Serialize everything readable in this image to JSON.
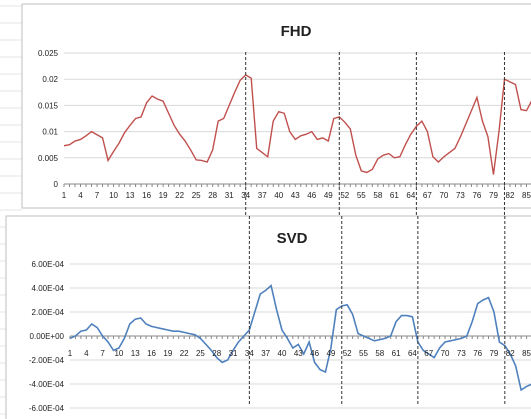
{
  "chart_data": [
    {
      "type": "line",
      "title": "FHD",
      "xlabel": "",
      "ylabel": "",
      "ylim": [
        0,
        0.025
      ],
      "y_ticks": [
        "0",
        "0.005",
        "0.01",
        "0.015",
        "0.02",
        "0.025"
      ],
      "y_tick_values": [
        0,
        0.005,
        0.01,
        0.015,
        0.02,
        0.025
      ],
      "x": [
        1,
        2,
        3,
        4,
        5,
        6,
        7,
        8,
        9,
        10,
        11,
        12,
        13,
        14,
        15,
        16,
        17,
        18,
        19,
        20,
        21,
        22,
        23,
        24,
        25,
        26,
        27,
        28,
        29,
        30,
        31,
        32,
        33,
        34,
        35,
        36,
        37,
        38,
        39,
        40,
        41,
        42,
        43,
        44,
        45,
        46,
        47,
        48,
        49,
        50,
        51,
        52,
        53,
        54,
        55,
        56,
        57,
        58,
        59,
        60,
        61,
        62,
        63,
        64,
        65,
        66,
        67,
        68,
        69,
        70,
        71,
        72,
        73,
        74,
        75,
        76,
        77,
        78,
        79,
        80,
        81,
        82,
        83,
        84,
        85,
        86
      ],
      "x_tick_labels": [
        "1",
        "4",
        "7",
        "10",
        "13",
        "16",
        "19",
        "22",
        "25",
        "28",
        "31",
        "34",
        "37",
        "40",
        "43",
        "46",
        "49",
        "52",
        "55",
        "58",
        "61",
        "64",
        "67",
        "70",
        "73",
        "76",
        "79",
        "82",
        "85"
      ],
      "grid": true,
      "series": [
        {
          "color": "#c0504d",
          "values": [
            0.0073,
            0.0075,
            0.0082,
            0.0085,
            0.0092,
            0.01,
            0.0094,
            0.0088,
            0.0045,
            0.0062,
            0.0078,
            0.0098,
            0.0112,
            0.0125,
            0.0128,
            0.0155,
            0.0168,
            0.0162,
            0.0158,
            0.0135,
            0.0112,
            0.0095,
            0.0082,
            0.0065,
            0.0046,
            0.0045,
            0.0042,
            0.0065,
            0.012,
            0.0125,
            0.015,
            0.0175,
            0.0198,
            0.0208,
            0.0202,
            0.0068,
            0.006,
            0.0052,
            0.012,
            0.0138,
            0.0135,
            0.01,
            0.0085,
            0.0092,
            0.0095,
            0.01,
            0.0085,
            0.0088,
            0.0082,
            0.0125,
            0.0128,
            0.0118,
            0.0105,
            0.0055,
            0.0025,
            0.0022,
            0.0028,
            0.0048,
            0.0055,
            0.0058,
            0.005,
            0.0052,
            0.0075,
            0.0095,
            0.011,
            0.012,
            0.01,
            0.0052,
            0.0042,
            0.0052,
            0.006,
            0.0068,
            0.009,
            0.0115,
            0.014,
            0.0165,
            0.012,
            0.009,
            0.0018,
            0.01,
            0.02,
            0.0195,
            0.019,
            0.0142,
            0.014,
            0.016
          ]
        }
      ]
    },
    {
      "type": "line",
      "title": "SVD",
      "xlabel": "",
      "ylabel": "",
      "ylim": [
        -0.0006,
        0.0006
      ],
      "y_ticks": [
        "6.00E-04",
        "4.00E-04",
        "2.00E-04",
        "0.00E+00",
        "-2.00E-04",
        "-4.00E-04",
        "-6.00E-04"
      ],
      "y_tick_values": [
        0.0006,
        0.0004,
        0.0002,
        0,
        -0.0002,
        -0.0004,
        -0.0006
      ],
      "x": [
        1,
        2,
        3,
        4,
        5,
        6,
        7,
        8,
        9,
        10,
        11,
        12,
        13,
        14,
        15,
        16,
        17,
        18,
        19,
        20,
        21,
        22,
        23,
        24,
        25,
        26,
        27,
        28,
        29,
        30,
        31,
        32,
        33,
        34,
        35,
        36,
        37,
        38,
        39,
        40,
        41,
        42,
        43,
        44,
        45,
        46,
        47,
        48,
        49,
        50,
        51,
        52,
        53,
        54,
        55,
        56,
        57,
        58,
        59,
        60,
        61,
        62,
        63,
        64,
        65,
        66,
        67,
        68,
        69,
        70,
        71,
        72,
        73,
        74,
        75,
        76,
        77,
        78,
        79,
        80,
        81,
        82,
        83,
        84,
        85,
        86
      ],
      "x_tick_labels": [
        "1",
        "4",
        "7",
        "10",
        "13",
        "16",
        "19",
        "22",
        "25",
        "28",
        "31",
        "34",
        "37",
        "40",
        "43",
        "46",
        "49",
        "52",
        "55",
        "58",
        "61",
        "64",
        "67",
        "70",
        "73",
        "76",
        "79",
        "82",
        "85"
      ],
      "grid": true,
      "series": [
        {
          "color": "#4f81bd",
          "values": [
            -2e-05,
            0.0,
            4e-05,
            5e-05,
            0.0001,
            7e-05,
            0.0,
            -5e-05,
            -0.00012,
            -0.0001,
            -2e-05,
            0.0001,
            0.00014,
            0.00015,
            0.0001,
            8e-05,
            7e-05,
            6e-05,
            5e-05,
            4e-05,
            4e-05,
            3e-05,
            2e-05,
            1e-05,
            -2e-05,
            -7e-05,
            -0.00012,
            -0.00018,
            -0.00022,
            -0.0002,
            -0.00012,
            -5e-05,
            0.0,
            5e-05,
            0.0002,
            0.00035,
            0.00038,
            0.00042,
            0.00022,
            5e-05,
            -2e-05,
            -0.0001,
            -7e-05,
            -0.00015,
            -5e-05,
            -0.00022,
            -0.00028,
            -0.0003,
            -0.0001,
            0.00022,
            0.00025,
            0.00026,
            0.00018,
            2e-05,
            0.0,
            -2e-05,
            -4e-05,
            -3e-05,
            -2e-05,
            0.0,
            0.00012,
            0.00017,
            0.00017,
            0.00016,
            -5e-05,
            -0.00012,
            -0.00015,
            -0.00018,
            -0.0001,
            -5e-05,
            -4e-05,
            -3e-05,
            -2e-05,
            0.0,
            0.00012,
            0.00027,
            0.0003,
            0.00032,
            0.0002,
            -5e-05,
            -8e-05,
            -0.00015,
            -0.00025,
            -0.00045,
            -0.00042,
            -0.0004
          ]
        }
      ]
    }
  ],
  "markers": [
    34,
    51,
    65,
    81
  ]
}
